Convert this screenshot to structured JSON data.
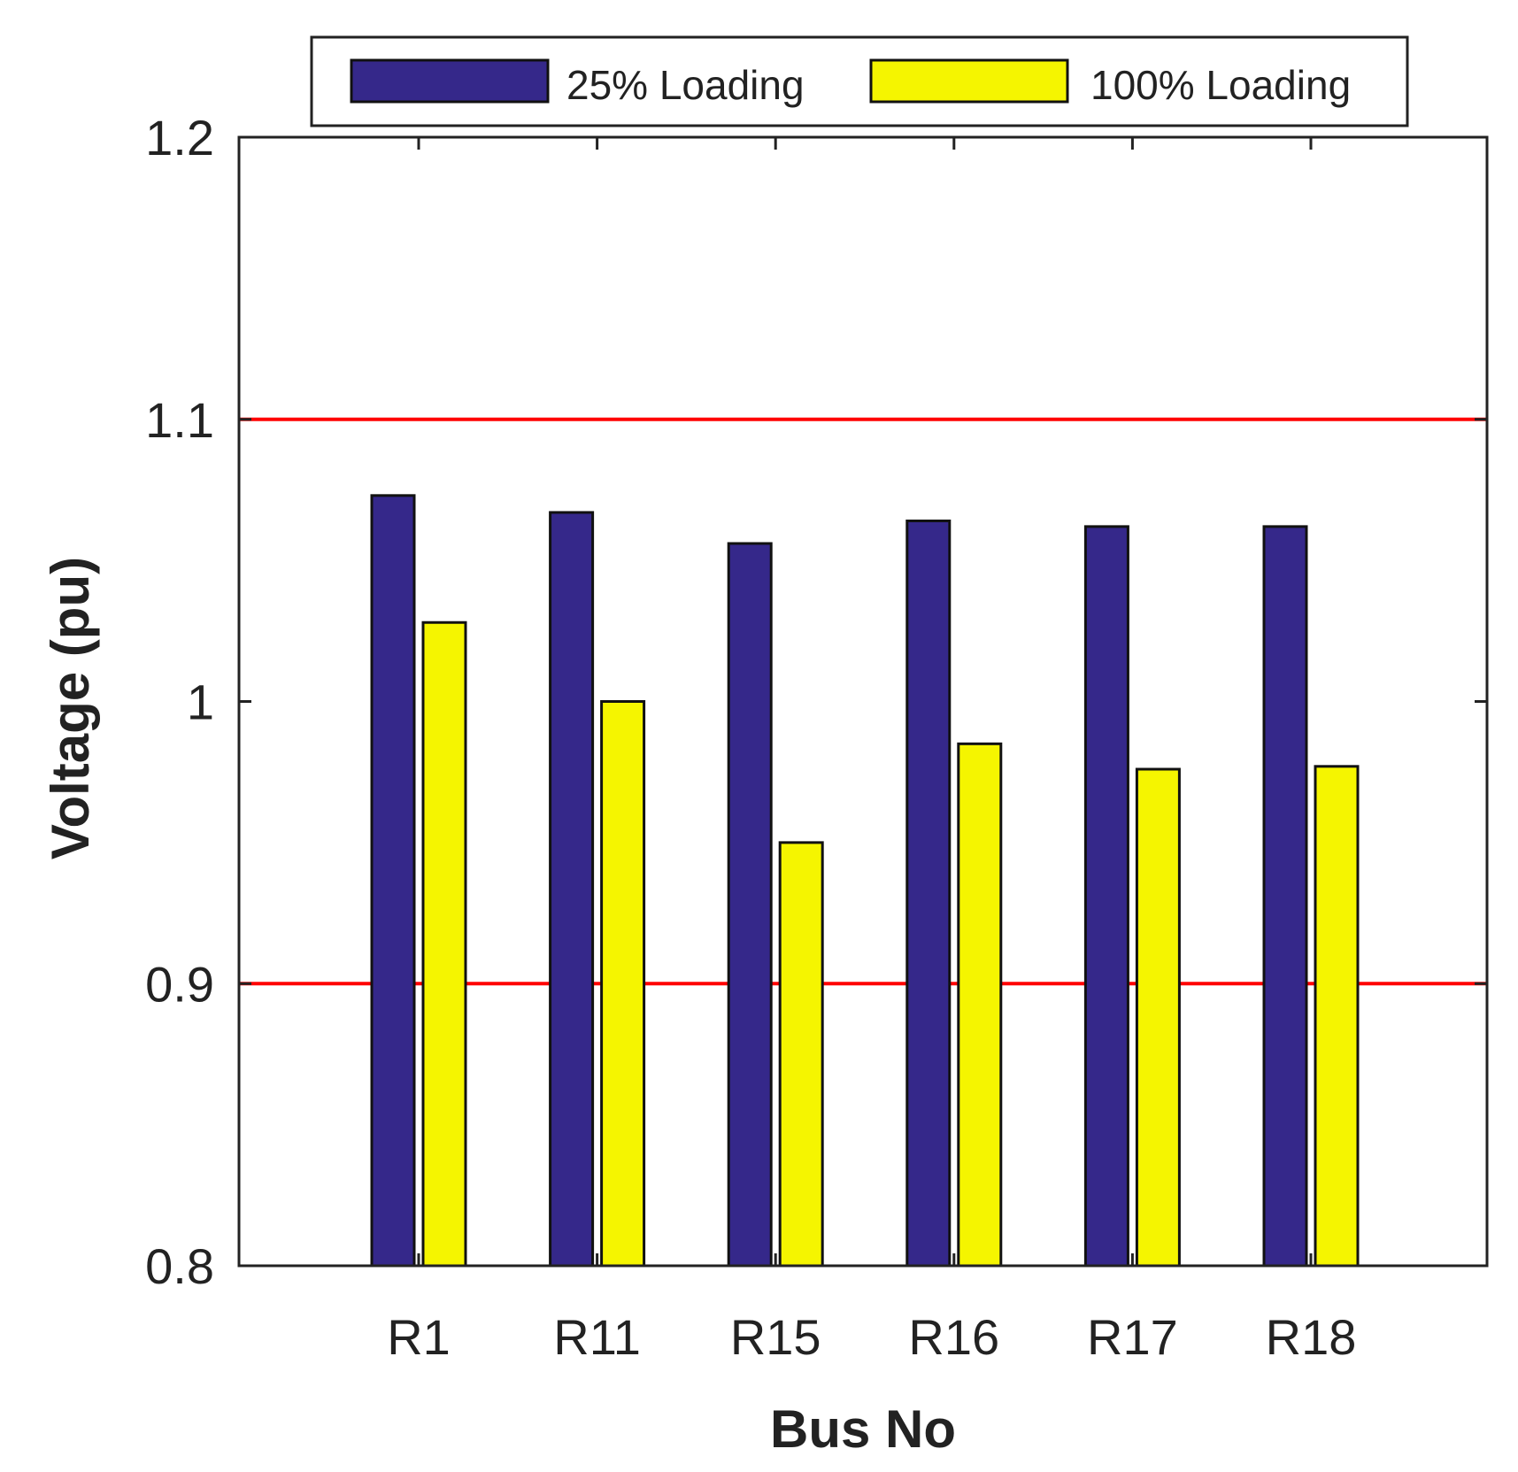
{
  "chart_data": {
    "type": "bar",
    "categories": [
      "R1",
      "R11",
      "R15",
      "R16",
      "R17",
      "R18"
    ],
    "series": [
      {
        "name": "25% Loading",
        "color": "#35288a",
        "values": [
          1.073,
          1.067,
          1.056,
          1.064,
          1.062,
          1.062
        ]
      },
      {
        "name": "100% Loading",
        "color": "#f5f500",
        "values": [
          1.028,
          1.0,
          0.95,
          0.985,
          0.976,
          0.977
        ]
      }
    ],
    "xlabel": "Bus No",
    "ylabel": "Voltage (pu)",
    "ylim": [
      0.8,
      1.2
    ],
    "yticks": [
      "0.8",
      "0.9",
      "1",
      "1.1",
      "1.2"
    ],
    "reference_lines": [
      {
        "value": 1.1,
        "color": "#ff0000"
      },
      {
        "value": 0.9,
        "color": "#ff0000"
      }
    ],
    "legend": {
      "position": "top",
      "orientation": "horizontal"
    },
    "grid": false
  }
}
